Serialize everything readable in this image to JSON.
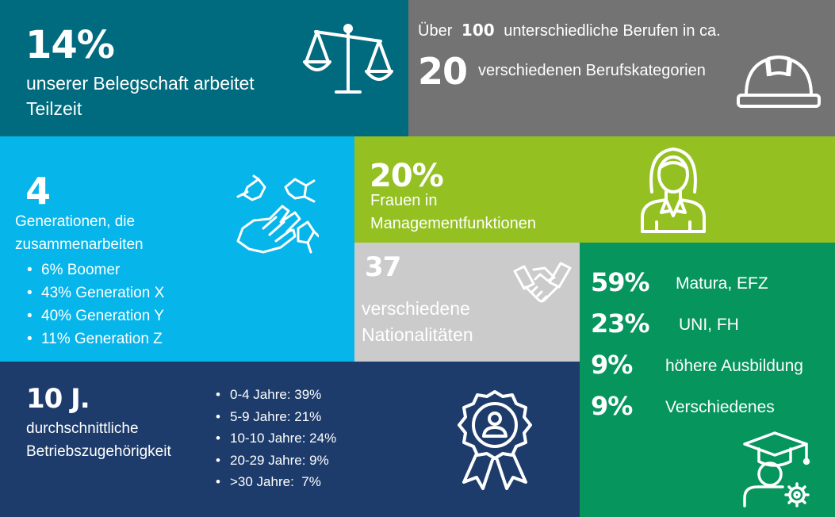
{
  "colors": {
    "teal": "#006b7e",
    "gray": "#737373",
    "sky": "#06b5ea",
    "lime": "#94c021",
    "light_gray": "#cbcbcb",
    "green": "#05955d",
    "navy": "#1d3c6b"
  },
  "parttime": {
    "percent": "14%",
    "line1": "unserer Belegschaft arbeitet",
    "line2": "Teilzeit",
    "icon": "balance-scale-icon"
  },
  "professions": {
    "prefix": "Über",
    "count": "100",
    "suffix": "unterschiedliche Berufen in ca.",
    "categories_count": "20",
    "categories_label": "verschiedenen Berufskategorien",
    "icon": "hard-hat-icon"
  },
  "generations": {
    "count": "4",
    "label_line1": "Generationen, die",
    "label_line2": "zusammenarbeiten",
    "items": [
      "6% Boomer",
      "43% Generation X",
      "40% Generation Y",
      "11% Generation Z"
    ],
    "icon": "joined-hands-icon"
  },
  "women": {
    "percent": "20%",
    "line1": "Frauen in",
    "line2": "Managementfunktionen",
    "icon": "businesswoman-icon"
  },
  "nationalities": {
    "count": "37",
    "line1": "verschiedene",
    "line2": "Nationalitäten",
    "icon": "handshake-icon"
  },
  "education": {
    "items": [
      {
        "percent": "59%",
        "label": "Matura, EFZ"
      },
      {
        "percent": "23%",
        "label": "UNI, FH"
      },
      {
        "percent": "9%",
        "label": "höhere Ausbildung"
      },
      {
        "percent": "9%",
        "label": "Verschiedenes"
      }
    ],
    "icon": "graduate-icon"
  },
  "tenure": {
    "value": "10 J.",
    "line1": "durchschnittliche",
    "line2": "Betriebszugehörigkeit",
    "items": [
      "0-4 Jahre: 39%",
      "5-9 Jahre: 21%",
      "10-10 Jahre: 24%",
      "20-29 Jahre: 9%",
      ">30 Jahre:  7%"
    ],
    "icon": "award-badge-icon"
  }
}
